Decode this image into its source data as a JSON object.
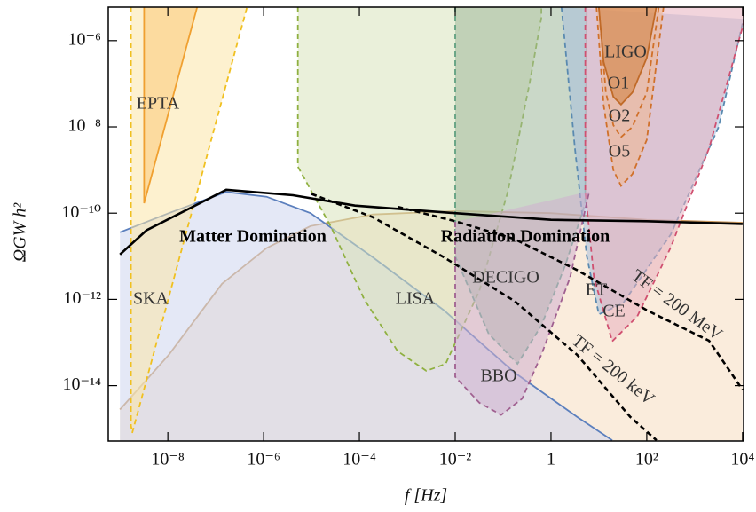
{
  "chart_data": {
    "type": "line",
    "x_label": "f [Hz]",
    "y_label": "ΩGW h²",
    "xlim": [
      5.7e-10,
      10500
    ],
    "ylim": [
      5.2e-16,
      6e-06
    ],
    "log_x": true,
    "log_y": true,
    "xticks": [
      {
        "value": 1e-08,
        "label": "10⁻⁸"
      },
      {
        "value": 1e-06,
        "label": "10⁻⁶"
      },
      {
        "value": 0.0001,
        "label": "10⁻⁴"
      },
      {
        "value": 0.01,
        "label": "10⁻²"
      },
      1,
      {
        "value": 100,
        "label": "10²"
      },
      {
        "value": 10000,
        "label": "10⁴"
      }
    ],
    "yticks": [
      {
        "value": 1e-06,
        "label": "10⁻⁶"
      },
      {
        "value": 1e-08,
        "label": "10⁻⁸"
      },
      {
        "value": 1e-10,
        "label": "10⁻¹⁰"
      },
      {
        "value": 1e-12,
        "label": "10⁻¹²"
      },
      {
        "value": 1e-14,
        "label": "10⁻¹⁴"
      }
    ],
    "annotations": [
      "LIGO"
    ],
    "series": [
      {
        "name": "Radiation Domination",
        "color": "#c8955a",
        "fill": "#f5dcc0",
        "shape": "area",
        "dashed": false,
        "x": [
          1e-09,
          1.05e-08,
          1.35e-07,
          1.15e-06,
          9.5e-06,
          0.00019,
          0.01,
          1,
          100,
          10000
        ],
        "values": [
          2.8e-15,
          5.2e-14,
          2.3e-12,
          1.55e-11,
          5e-11,
          9.3e-11,
          1.12e-10,
          1e-10,
          7e-11,
          6e-11
        ]
      },
      {
        "name": "Matter Domination",
        "color": "#5b7fbd",
        "fill": "#cdd6ee",
        "shape": "area",
        "dashed": false,
        "x": [
          1e-09,
          1.05e-08,
          1.66e-07,
          1.15e-06,
          9.5e-06,
          0.00019,
          0.0058,
          0.174,
          3.5,
          19
        ],
        "values": [
          3.6e-11,
          1e-10,
          3.1e-10,
          2.4e-10,
          1e-10,
          9.5e-12,
          5.6e-13,
          2e-14,
          1.9e-15,
          5.4e-16
        ]
      },
      {
        "name": "SKA",
        "color": "#f0c020",
        "fill": "#fbe6a8",
        "shape": "region",
        "dashed": true,
        "x": [
          1.7e-09,
          1.7e-09,
          1.8e-09,
          4.5e-07
        ],
        "values": [
          6e-06,
          1.2e-15,
          8e-16,
          6e-06
        ]
      },
      {
        "name": "EPTA",
        "color": "#f0a030",
        "fill": "#fbc878",
        "shape": "region",
        "dashed": false,
        "x": [
          3.2e-09,
          3.2e-09,
          4.1e-08
        ],
        "values": [
          6e-06,
          1.7e-10,
          6e-06
        ]
      },
      {
        "name": "LISA",
        "color": "#8fb040",
        "fill": "#d8e4bc",
        "shape": "region",
        "dashed": true,
        "x": [
          5.2e-06,
          5.2e-06,
          2.5e-05,
          0.000126,
          0.00063,
          0.0025,
          0.0063,
          0.032,
          0.126,
          0.355,
          0.63,
          0.63
        ],
        "values": [
          6e-06,
          1.2e-09,
          5e-11,
          1e-12,
          6.3e-14,
          2.2e-14,
          3.2e-14,
          1.6e-12,
          3.2e-10,
          1e-07,
          3.4e-06,
          6e-06
        ]
      },
      {
        "name": "DECIGO",
        "color": "#60a080",
        "fill": "#9fb89a",
        "shape": "region",
        "dashed": true,
        "x": [
          0.01,
          0.01,
          0.05,
          0.2,
          0.63,
          2,
          5.2,
          5.6
        ],
        "values": [
          6e-06,
          1e-11,
          1.6e-13,
          3.2e-14,
          2.5e-13,
          6.3e-12,
          1.7e-10,
          6e-06
        ]
      },
      {
        "name": "ET",
        "color": "#5a8ab0",
        "fill": "#a8c0dc",
        "shape": "region",
        "dashed": true,
        "x": [
          1.66,
          3.16,
          5.6,
          10,
          31.6,
          316,
          3160,
          10500
        ],
        "values": [
          6e-06,
          3.2e-09,
          1e-11,
          4.5e-13,
          8e-13,
          3.2e-11,
          1e-08,
          3.2e-06
        ]
      },
      {
        "name": "CE",
        "color": "#d05070",
        "fill": "#e8b0c0",
        "shape": "region",
        "dashed": true,
        "x": [
          5.2,
          5.2,
          7.9,
          19,
          63,
          316,
          2000,
          10500,
          10500
        ],
        "values": [
          6e-06,
          3.2e-10,
          3.2e-12,
          1.07e-13,
          4e-13,
          1.6e-11,
          3.2e-09,
          2.5e-06,
          6e-06
        ]
      },
      {
        "name": "BBO",
        "color": "#a06090",
        "fill": "#d0b0d0",
        "shape": "region",
        "dashed": true,
        "x": [
          0.01,
          0.01,
          0.032,
          0.091,
          0.25,
          0.63,
          2.5,
          6.3
        ],
        "values": [
          6.3e-11,
          1.6e-14,
          4e-15,
          2.1e-15,
          5e-15,
          5.2e-14,
          3.2e-12,
          3.2e-10
        ]
      },
      {
        "name": "O5",
        "color": "#d0702a",
        "fill": "#f0b890",
        "shape": "region",
        "dashed": true,
        "x": [
          8.9,
          12.6,
          20,
          29,
          50,
          100,
          224
        ],
        "values": [
          6e-06,
          3.2e-08,
          1e-09,
          4.3e-10,
          8e-10,
          5e-09,
          6e-06
        ]
      },
      {
        "name": "O2",
        "color": "#d0702a",
        "shape": "line",
        "dashed": true,
        "x": [
          10,
          14,
          20,
          29,
          50,
          100,
          178
        ],
        "values": [
          6e-06,
          6.3e-08,
          1.1e-08,
          5.8e-09,
          1e-08,
          6.3e-08,
          6e-06
        ]
      },
      {
        "name": "O1",
        "color": "#c06a28",
        "fill": "#d2803c",
        "shape": "region",
        "dashed": false,
        "x": [
          10,
          12.6,
          20,
          29,
          50,
          100,
          158
        ],
        "values": [
          6e-06,
          3.2e-07,
          5e-08,
          3.3e-08,
          6.3e-08,
          4e-07,
          6e-06
        ]
      },
      {
        "color": "#000000",
        "shape": "line",
        "dashed": false,
        "x": [
          1e-09,
          3.6e-09,
          1.66e-07,
          4.1e-06,
          8.1e-05,
          0.01,
          1,
          100,
          10000
        ],
        "values": [
          1.1e-11,
          4e-11,
          3.5e-10,
          2.6e-10,
          1.5e-10,
          1e-10,
          7e-11,
          6.5e-11,
          5.6e-11
        ]
      },
      {
        "name": "TF = 200 MeV",
        "color": "#000000",
        "shape": "line",
        "dashed": true,
        "x": [
          0.00063,
          0.01,
          0.174,
          3.5,
          100,
          2000,
          10000
        ],
        "values": [
          1.4e-10,
          6.5e-11,
          2.5e-11,
          4.8e-12,
          5.6e-13,
          1.1e-13,
          8e-15
        ]
      },
      {
        "name": "TF = 200 keV",
        "color": "#000000",
        "shape": "line",
        "dashed": true,
        "x": [
          1e-05,
          0.00019,
          0.0058,
          0.174,
          3.5,
          45,
          160
        ],
        "values": [
          2.8e-10,
          8.1e-11,
          9.5e-12,
          9.1e-13,
          5.2e-14,
          1.9e-15,
          5.4e-16
        ]
      }
    ]
  }
}
